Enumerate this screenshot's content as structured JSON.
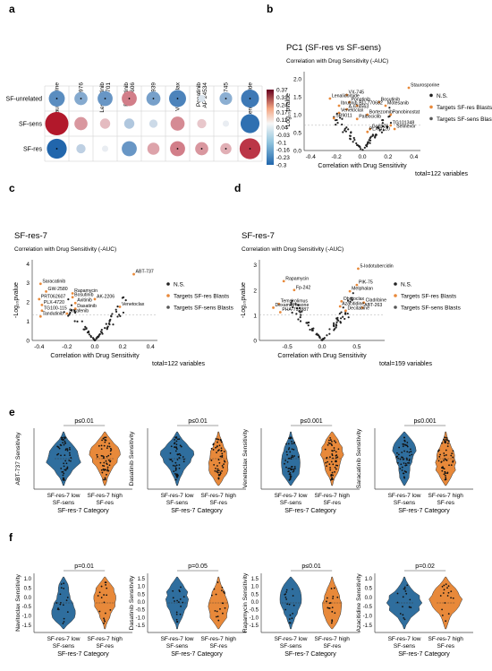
{
  "panel_labels": {
    "a": "a",
    "b": "b",
    "c": "c",
    "d": "d",
    "e": "e",
    "f": "f"
  },
  "colors": {
    "blue": "#2166ac",
    "lightblue": "#92c5de",
    "red": "#b2182b",
    "lightred": "#f4a582",
    "orange": "#e8893a",
    "violin_blue": "#2f6e9e",
    "target_orange": "#e8893a"
  },
  "chart_data": [
    {
      "id": "heatmap-a",
      "type": "heatmap",
      "columns": [
        "Staurosporine",
        "Go6976",
        "Lestaurtinib, CEP701",
        "Bosutinib, SKI 606",
        "XAV 939",
        "Venetoclax",
        "Ponatinib, AP 24534",
        "VX-745",
        "Lenalidomide"
      ],
      "rows": [
        "SF-unrelated",
        "SF-sens",
        "SF-res"
      ],
      "values": [
        [
          -0.22,
          -0.16,
          -0.2,
          0.2,
          -0.18,
          -0.24,
          -0.04,
          -0.15,
          -0.26
        ],
        [
          0.37,
          0.16,
          0.1,
          -0.1,
          -0.06,
          0.18,
          0.08,
          -0.02,
          -0.28
        ],
        [
          -0.3,
          -0.08,
          -0.02,
          -0.2,
          0.14,
          0.2,
          0.16,
          0.12,
          0.32
        ]
      ],
      "stars": [
        [
          1,
          1,
          1,
          1,
          1,
          1,
          0,
          1,
          1
        ],
        [
          0,
          0,
          0,
          0,
          0,
          0,
          0,
          0,
          0
        ],
        [
          1,
          0,
          0,
          0,
          0,
          1,
          1,
          1,
          1
        ]
      ],
      "colorbar_ticks": [
        "0.37",
        "0.31",
        "0.24",
        "0.17",
        "0.11",
        "0.04",
        "-0.03",
        "-0.1",
        "-0.16",
        "-0.23",
        "-0.3"
      ],
      "vmin": -0.3,
      "vmax": 0.37
    },
    {
      "id": "volcano-b",
      "type": "scatter",
      "title": "PC1 (SF-res vs SF-sens)",
      "subtitle": "Correlation with Drug Sensitivity (-AUC)",
      "xlabel": "Correlation with Drug Sensitivity",
      "ylabel": "-Log₁₀pvalue",
      "xlim": [
        -0.45,
        0.45
      ],
      "ylim": [
        0,
        2.2
      ],
      "xticks": [
        "-0.4",
        "-0.2",
        "0.0",
        "0.2",
        "0.4"
      ],
      "yticks": [
        "0.0",
        "0.5",
        "1.0",
        "1.5",
        "2.0"
      ],
      "legend": [
        "N.S.",
        "Targets SF-res Blasts",
        "Targets SF-sens Blasts"
      ],
      "total": "total=122 variables",
      "labels": [
        {
          "text": "Staurosporine",
          "x": 0.36,
          "y": 1.75
        },
        {
          "text": "VX-745",
          "x": -0.12,
          "y": 1.55
        },
        {
          "text": "Lenalidomide",
          "x": -0.25,
          "y": 1.45
        },
        {
          "text": "Ponatinib",
          "x": -0.1,
          "y": 1.35
        },
        {
          "text": "Bosutinib",
          "x": 0.13,
          "y": 1.35
        },
        {
          "text": "Ibrutinib",
          "x": -0.18,
          "y": 1.25
        },
        {
          "text": "BIJ-770682",
          "x": -0.04,
          "y": 1.25
        },
        {
          "text": "Motesanib",
          "x": 0.18,
          "y": 1.25
        },
        {
          "text": "A-674563",
          "x": -0.12,
          "y": 1.15
        },
        {
          "text": "Venetoclax",
          "x": -0.18,
          "y": 1.05
        },
        {
          "text": "Bortezomib",
          "x": 0.04,
          "y": 1.0
        },
        {
          "text": "Panobinostat",
          "x": 0.22,
          "y": 1.0
        },
        {
          "text": "SR9011",
          "x": -0.22,
          "y": 0.9
        },
        {
          "text": "Palbociclib",
          "x": -0.04,
          "y": 0.88
        },
        {
          "text": "TG101348",
          "x": 0.22,
          "y": 0.7
        },
        {
          "text": "Go6976",
          "x": 0.06,
          "y": 0.6
        },
        {
          "text": "Selinexor",
          "x": 0.25,
          "y": 0.6
        },
        {
          "text": "PLX-4720",
          "x": 0.04,
          "y": 0.52
        }
      ]
    },
    {
      "id": "volcano-c",
      "type": "scatter",
      "title": "SF-res-7",
      "subtitle": "Correlation with Drug Sensitivity (-AUC)",
      "xlabel": "Correlation with Drug Sensitivity",
      "ylabel": "-Log₁₀pvalue",
      "xlim": [
        -0.45,
        0.45
      ],
      "ylim": [
        0,
        4.2
      ],
      "xticks": [
        "-0.4",
        "-0.2",
        "0.0",
        "0.2",
        "0.4"
      ],
      "yticks": [
        "0",
        "1",
        "2",
        "3",
        "4"
      ],
      "legend": [
        "N.S.",
        "Targets SF-res Blasts",
        "Targets SF-sens Blasts"
      ],
      "total": "total=122 variables",
      "labels": [
        {
          "text": "ABT-737",
          "x": 0.28,
          "y": 3.45
        },
        {
          "text": "Saracatinib",
          "x": -0.39,
          "y": 2.95
        },
        {
          "text": "GW-2580",
          "x": -0.35,
          "y": 2.55
        },
        {
          "text": "Rapamycin",
          "x": -0.16,
          "y": 2.45
        },
        {
          "text": "Bosutinib",
          "x": -0.16,
          "y": 2.25
        },
        {
          "text": "PRT062607",
          "x": -0.4,
          "y": 2.15
        },
        {
          "text": "AK-2206",
          "x": 0.0,
          "y": 2.15
        },
        {
          "text": "Axitinib",
          "x": -0.14,
          "y": 1.95
        },
        {
          "text": "PLX-4720",
          "x": -0.38,
          "y": 1.85
        },
        {
          "text": "Dasatinib",
          "x": -0.14,
          "y": 1.65
        },
        {
          "text": "Venetoclax",
          "x": 0.18,
          "y": 1.75
        },
        {
          "text": "TG100-115",
          "x": -0.38,
          "y": 1.55
        },
        {
          "text": "Sorafenib",
          "x": -0.2,
          "y": 1.4
        },
        {
          "text": "Tandutinib",
          "x": -0.39,
          "y": 1.25
        }
      ]
    },
    {
      "id": "volcano-d",
      "type": "scatter",
      "title": "SF-res-7",
      "subtitle": "Correlation with Drug Sensitivity (-AUC)",
      "xlabel": "Correlation with Drug Sensitivity",
      "ylabel": "-Log₁₀pvalue",
      "xlim": [
        -0.9,
        0.9
      ],
      "ylim": [
        0,
        3.2
      ],
      "xticks": [
        "-0.5",
        "0.0",
        "0.5"
      ],
      "yticks": [
        "0",
        "1",
        "2",
        "3"
      ],
      "legend": [
        "N.S.",
        "Targets SF-res Blasts",
        "Targets SF-sens Blasts"
      ],
      "total": "total=159 variables",
      "labels": [
        {
          "text": "5-Iodotubercidin",
          "x": 0.52,
          "y": 2.85
        },
        {
          "text": "Rapamycin",
          "x": -0.55,
          "y": 2.35
        },
        {
          "text": "PIK-75",
          "x": 0.5,
          "y": 2.2
        },
        {
          "text": "Fp-242",
          "x": -0.4,
          "y": 2.0
        },
        {
          "text": "Melphalan",
          "x": 0.4,
          "y": 1.95
        },
        {
          "text": "Obatoclax",
          "x": 0.28,
          "y": 1.55
        },
        {
          "text": "Cladribine",
          "x": 0.6,
          "y": 1.5
        },
        {
          "text": "Temsirolimus",
          "x": -0.62,
          "y": 1.45
        },
        {
          "text": "Azacitidine",
          "x": 0.26,
          "y": 1.35
        },
        {
          "text": "ABT-263",
          "x": 0.58,
          "y": 1.3
        },
        {
          "text": "Dexamethasone",
          "x": -0.7,
          "y": 1.3
        },
        {
          "text": "Decitabine",
          "x": 0.34,
          "y": 1.18
        },
        {
          "text": "PHA-793887",
          "x": -0.6,
          "y": 1.12
        }
      ]
    },
    {
      "id": "violins-e",
      "type": "violin",
      "category_label": "SF-res-7 Category",
      "groups": [
        "SF-res-7 low\nSF-sens",
        "SF-res-7 high\nSF-res"
      ],
      "panels": [
        {
          "ylabel": "ABT-737 Sensitivity",
          "p": "p≤0.01"
        },
        {
          "ylabel": "Dasatinib Sensitivity",
          "p": "p≤0.01"
        },
        {
          "ylabel": "Venetoclax Sensitivity",
          "p": "p≤0.001"
        },
        {
          "ylabel": "Saracatinib Sensitivity",
          "p": "p≤0.001"
        }
      ]
    },
    {
      "id": "violins-f",
      "type": "violin",
      "category_label": "SF-res-7 Category",
      "groups": [
        "SF-res-7 low\nSF-sens",
        "SF-res-7 high\nSF-res"
      ],
      "panels": [
        {
          "ylabel": "Navitoclax Sensitivity",
          "p": "p=0.01",
          "yticks": [
            "1.0",
            "0.5",
            "0.0",
            "-0.5",
            "-1.0",
            "-1.5"
          ]
        },
        {
          "ylabel": "Dasatinib Sensitivity",
          "p": "p=0.05",
          "yticks": [
            "1.5",
            "1.0",
            "0.5",
            "0.0",
            "-0.5",
            "-1.0",
            "-1.5"
          ]
        },
        {
          "ylabel": "Rapamycin Sensitivity",
          "p": "p≤0.01",
          "yticks": [
            "1.5",
            "1.0",
            "0.5",
            "0.0",
            "-0.5",
            "-1.0",
            "-1.5"
          ]
        },
        {
          "ylabel": "Azacitidine Sensitivity",
          "p": "p=0.02",
          "yticks": [
            "1.0",
            "0.5",
            "0.0",
            "-0.5",
            "-1.0",
            "-1.5"
          ]
        }
      ]
    }
  ]
}
